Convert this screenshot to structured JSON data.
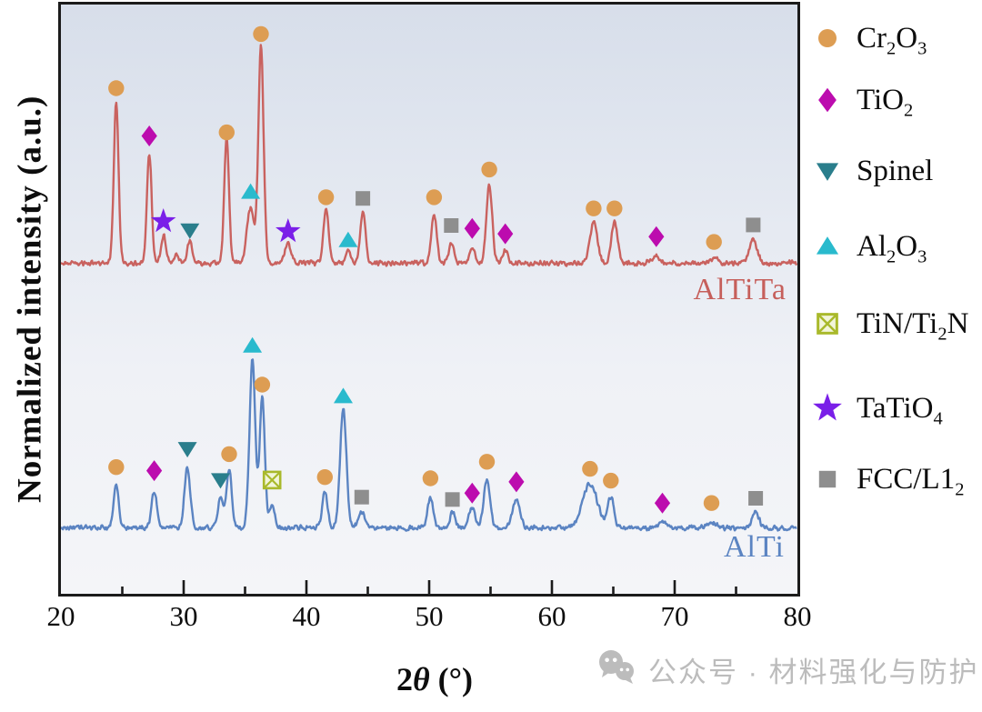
{
  "watermark": {
    "text": "公众号 · 材料强化与防护",
    "icon": "wechat-icon",
    "color": "#bcbcbc"
  },
  "chart_data": {
    "type": "line",
    "title": "",
    "xlabel": "2θ (°)",
    "xlabel_segments": [
      {
        "t": "2"
      },
      {
        "t": "θ",
        "i": true
      },
      {
        "t": " (°)"
      }
    ],
    "ylabel": "Normalized intensity (a.u.)",
    "xlim": [
      20,
      80
    ],
    "x_major_ticks": [
      20,
      30,
      40,
      50,
      60,
      70,
      80
    ],
    "x_minor_step": 5,
    "grid": false,
    "legend_position": "right-outside",
    "legend_y_centers": [
      42,
      110,
      188,
      271,
      356,
      449,
      527
    ],
    "phases": [
      {
        "id": "Cr2O3",
        "marker": "circle",
        "color": "#DD9D53",
        "label_segments": [
          [
            "Cr"
          ],
          [
            "2",
            "sub"
          ],
          [
            "O"
          ],
          [
            "3",
            "sub"
          ]
        ]
      },
      {
        "id": "TiO2",
        "marker": "diamond",
        "color": "#BC0CAE",
        "label_segments": [
          [
            "TiO"
          ],
          [
            "2",
            "sub"
          ]
        ]
      },
      {
        "id": "Spinel",
        "marker": "tri-down",
        "color": "#2A7E8C",
        "label_segments": [
          [
            "Spinel"
          ]
        ]
      },
      {
        "id": "Al2O3",
        "marker": "tri-up",
        "color": "#29BACD",
        "label_segments": [
          [
            "Al"
          ],
          [
            "2",
            "sub"
          ],
          [
            "O"
          ],
          [
            "3",
            "sub"
          ]
        ]
      },
      {
        "id": "TiN",
        "marker": "xsquare",
        "color": "#A9B92B",
        "fill": "#F2F5D9",
        "label_segments": [
          [
            "TiN/Ti"
          ],
          [
            "2",
            "sub"
          ],
          [
            "N"
          ]
        ]
      },
      {
        "id": "TaTiO4",
        "marker": "star",
        "color": "#7A1FE8",
        "label_segments": [
          [
            "TaTiO"
          ],
          [
            "4",
            "sub"
          ]
        ]
      },
      {
        "id": "FCC",
        "marker": "square",
        "color": "#8E8E8E",
        "label_segments": [
          [
            "FCC/L1"
          ],
          [
            "2",
            "sub"
          ]
        ]
      }
    ],
    "series": [
      {
        "name": "AlTiTa",
        "color": "#C9625F",
        "baseline_pct": 43.9,
        "noise_amp_pct": 0.5,
        "seed": 11,
        "peaks": [
          [
            24.5,
            27.5,
            0.45
          ],
          [
            27.2,
            18.7,
            0.45
          ],
          [
            28.35,
            4.8,
            0.45
          ],
          [
            29.4,
            1.5,
            0.4
          ],
          [
            30.5,
            3.6,
            0.5
          ],
          [
            33.5,
            21.5,
            0.45
          ],
          [
            35.45,
            9.5,
            0.7
          ],
          [
            36.3,
            36.8,
            0.5
          ],
          [
            38.5,
            3.2,
            0.6
          ],
          [
            41.6,
            9.3,
            0.5
          ],
          [
            43.4,
            1.9,
            0.5
          ],
          [
            44.6,
            8.5,
            0.5
          ],
          [
            50.4,
            8.4,
            0.5
          ],
          [
            51.8,
            3.3,
            0.5
          ],
          [
            53.5,
            2.7,
            0.5
          ],
          [
            54.9,
            13.2,
            0.55
          ],
          [
            56.2,
            2.2,
            0.5
          ],
          [
            63.4,
            6.9,
            0.7
          ],
          [
            65.1,
            6.9,
            0.6
          ],
          [
            68.5,
            1.2,
            0.8
          ],
          [
            73.2,
            0.8,
            0.8
          ],
          [
            76.4,
            4.2,
            0.7
          ]
        ],
        "markers": [
          [
            "Cr2O3",
            24.5,
            14.2
          ],
          [
            "TiO2",
            27.2,
            22.3
          ],
          [
            "TaTiO4",
            28.35,
            36.8
          ],
          [
            "Spinel",
            30.5,
            38.3
          ],
          [
            "Cr2O3",
            33.5,
            21.7
          ],
          [
            "Al2O3",
            35.45,
            31.8
          ],
          [
            "Cr2O3",
            36.3,
            5.0
          ],
          [
            "TaTiO4",
            38.5,
            38.5
          ],
          [
            "Cr2O3",
            41.6,
            32.7
          ],
          [
            "Al2O3",
            43.4,
            40.0
          ],
          [
            "FCC",
            44.6,
            32.9
          ],
          [
            "Cr2O3",
            50.4,
            32.7
          ],
          [
            "FCC",
            51.8,
            37.5
          ],
          [
            "TiO2",
            53.5,
            38.0
          ],
          [
            "Cr2O3",
            54.9,
            28.0
          ],
          [
            "TiO2",
            56.2,
            38.9
          ],
          [
            "Cr2O3",
            63.4,
            34.6
          ],
          [
            "Cr2O3",
            65.1,
            34.6
          ],
          [
            "TiO2",
            68.5,
            39.4
          ],
          [
            "Cr2O3",
            73.2,
            40.3
          ],
          [
            "FCC",
            76.4,
            37.4
          ]
        ]
      },
      {
        "name": "AlTi",
        "color": "#5B84C2",
        "baseline_pct": 88.8,
        "noise_amp_pct": 0.5,
        "seed": 42,
        "peaks": [
          [
            24.5,
            7.3,
            0.5
          ],
          [
            27.6,
            6.2,
            0.5
          ],
          [
            30.3,
            10.3,
            0.55
          ],
          [
            33.0,
            5.2,
            0.5
          ],
          [
            33.7,
            9.8,
            0.5
          ],
          [
            35.6,
            28.5,
            0.55
          ],
          [
            36.4,
            22.3,
            0.5
          ],
          [
            37.2,
            4.0,
            0.5
          ],
          [
            41.5,
            6.2,
            0.5
          ],
          [
            43.0,
            20.3,
            0.6
          ],
          [
            44.5,
            2.8,
            0.6
          ],
          [
            50.1,
            5.2,
            0.55
          ],
          [
            51.9,
            2.5,
            0.5
          ],
          [
            53.5,
            3.6,
            0.6
          ],
          [
            54.7,
            8.3,
            0.6
          ],
          [
            57.1,
            4.7,
            0.7
          ],
          [
            63.1,
            7.5,
            1.4
          ],
          [
            64.8,
            5.2,
            0.6
          ],
          [
            69.0,
            0.8,
            1.0
          ],
          [
            73.0,
            1.0,
            0.9
          ],
          [
            76.6,
            2.8,
            0.6
          ]
        ],
        "markers": [
          [
            "Cr2O3",
            24.5,
            78.5
          ],
          [
            "TiO2",
            27.6,
            79.1
          ],
          [
            "Spinel",
            30.3,
            75.4
          ],
          [
            "Spinel",
            33.0,
            80.7
          ],
          [
            "Cr2O3",
            33.7,
            76.3
          ],
          [
            "Al2O3",
            35.6,
            57.9
          ],
          [
            "Cr2O3",
            36.4,
            64.5
          ],
          [
            "TiN",
            37.2,
            80.7
          ],
          [
            "Cr2O3",
            41.5,
            80.2
          ],
          [
            "Al2O3",
            43.0,
            66.5
          ],
          [
            "FCC",
            44.5,
            83.6
          ],
          [
            "Cr2O3",
            50.1,
            80.4
          ],
          [
            "FCC",
            51.9,
            84.0
          ],
          [
            "TiO2",
            53.5,
            82.9
          ],
          [
            "Cr2O3",
            54.7,
            77.6
          ],
          [
            "TiO2",
            57.1,
            81.0
          ],
          [
            "Cr2O3",
            63.1,
            78.8
          ],
          [
            "Cr2O3",
            64.8,
            80.8
          ],
          [
            "TiO2",
            69.0,
            84.6
          ],
          [
            "Cr2O3",
            73.0,
            84.6
          ],
          [
            "FCC",
            76.6,
            83.8
          ]
        ]
      }
    ]
  }
}
